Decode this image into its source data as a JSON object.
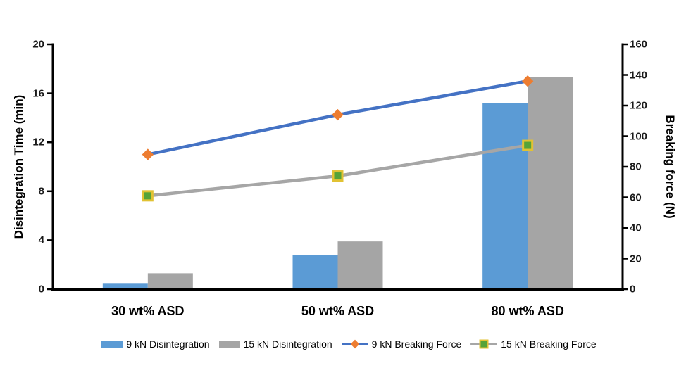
{
  "chart_data": {
    "type": "combo-bar-line",
    "categories": [
      "30 wt% ASD",
      "50 wt% ASD",
      "80 wt% ASD"
    ],
    "series": [
      {
        "name": "9 kN Disintegration",
        "type": "bar",
        "axis": "left",
        "values": [
          0.5,
          2.8,
          15.2
        ],
        "color": "#5B9BD5"
      },
      {
        "name": "15 kN Disintegration",
        "type": "bar",
        "axis": "left",
        "values": [
          1.3,
          3.9,
          17.3
        ],
        "color": "#A5A5A5"
      },
      {
        "name": "9 kN Breaking Force",
        "type": "line",
        "axis": "right",
        "values": [
          88,
          114,
          136
        ],
        "color": "#4472C4",
        "marker": "diamond",
        "marker_color": "#ED7D31",
        "marker_border": "#ED7D31"
      },
      {
        "name": "15 kN Breaking Force",
        "type": "line",
        "axis": "right",
        "values": [
          61,
          74,
          94
        ],
        "color": "#A6A6A6",
        "marker": "square",
        "marker_color": "#55A338",
        "marker_border": "#E1C233"
      }
    ],
    "left_axis": {
      "label": "Disintegration Time (min)",
      "min": 0,
      "max": 20,
      "ticks": [
        0,
        4,
        8,
        12,
        16,
        20
      ]
    },
    "right_axis": {
      "label": "Breaking force (N)",
      "min": 0,
      "max": 160,
      "ticks": [
        0,
        20,
        40,
        60,
        80,
        100,
        120,
        140,
        160
      ]
    },
    "legend_position": "bottom",
    "grid": "off",
    "axis_color": "#000000",
    "background": "#FFFFFF"
  }
}
